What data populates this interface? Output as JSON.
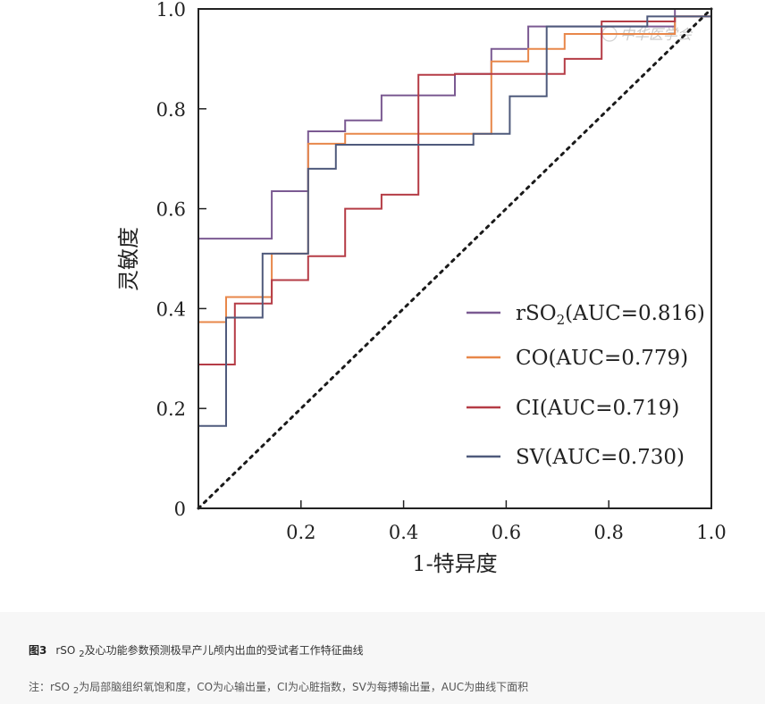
{
  "watermark": "中华医学会",
  "chart_data": {
    "type": "line",
    "subtype": "roc",
    "xlabel": "1-特异度",
    "ylabel": "灵敏度",
    "xlim": [
      0,
      1
    ],
    "ylim": [
      0,
      1
    ],
    "x_ticks": [
      0.2,
      0.4,
      0.6,
      0.8,
      1.0
    ],
    "x_tick_labels": [
      "0.2",
      "0.4",
      "0.6",
      "0.8",
      "1.0"
    ],
    "y_ticks": [
      0,
      0.2,
      0.4,
      0.6,
      0.8,
      1.0
    ],
    "y_tick_labels": [
      "0",
      "0.2",
      "0.4",
      "0.6",
      "0.8",
      "1.0"
    ],
    "reference_line": {
      "style": "dotted",
      "color": "#1a1a1a",
      "x": [
        0,
        1
      ],
      "y": [
        0,
        1
      ]
    },
    "series": [
      {
        "name": "rSO2",
        "label_prefix": "rSO",
        "label_sub": "2",
        "label_suffix": "(AUC=0.816)",
        "auc": 0.816,
        "color": "#7b5a92",
        "x": [
          0,
          0.143,
          0.143,
          0.214,
          0.214,
          0.286,
          0.286,
          0.357,
          0.357,
          0.5,
          0.5,
          0.571,
          0.571,
          0.643,
          0.643,
          0.929,
          0.929,
          1.0
        ],
        "y": [
          0.54,
          0.54,
          0.635,
          0.635,
          0.755,
          0.755,
          0.777,
          0.777,
          0.827,
          0.827,
          0.87,
          0.87,
          0.92,
          0.92,
          0.965,
          0.965,
          1.0,
          1.0
        ]
      },
      {
        "name": "CO",
        "label_prefix": "CO",
        "label_sub": "",
        "label_suffix": "(AUC=0.779)",
        "auc": 0.779,
        "color": "#e8874a",
        "x": [
          0,
          0.054,
          0.054,
          0.143,
          0.143,
          0.214,
          0.214,
          0.286,
          0.286,
          0.571,
          0.571,
          0.643,
          0.643,
          0.714,
          0.714,
          0.929,
          0.929,
          1.0
        ],
        "y": [
          0.373,
          0.373,
          0.423,
          0.423,
          0.51,
          0.51,
          0.73,
          0.73,
          0.75,
          0.75,
          0.895,
          0.895,
          0.92,
          0.92,
          0.95,
          0.95,
          0.985,
          0.985
        ]
      },
      {
        "name": "CI",
        "label_prefix": "CI",
        "label_sub": "",
        "label_suffix": "(AUC=0.719)",
        "auc": 0.719,
        "color": "#b53c46",
        "x": [
          0,
          0.071,
          0.071,
          0.143,
          0.143,
          0.214,
          0.214,
          0.286,
          0.286,
          0.357,
          0.357,
          0.429,
          0.429,
          0.5,
          0.5,
          0.714,
          0.714,
          0.786,
          0.786,
          0.929,
          0.929,
          1.0,
          1.0
        ],
        "y": [
          0.288,
          0.288,
          0.41,
          0.41,
          0.457,
          0.457,
          0.505,
          0.505,
          0.6,
          0.6,
          0.628,
          0.628,
          0.868,
          0.868,
          0.87,
          0.87,
          0.9,
          0.9,
          0.975,
          0.975,
          0.985,
          0.985,
          1.0
        ]
      },
      {
        "name": "SV",
        "label_prefix": "SV",
        "label_sub": "",
        "label_suffix": "(AUC=0.730)",
        "auc": 0.73,
        "color": "#4f5a7c",
        "x": [
          0,
          0.054,
          0.054,
          0.125,
          0.125,
          0.214,
          0.214,
          0.268,
          0.268,
          0.536,
          0.536,
          0.607,
          0.607,
          0.679,
          0.679,
          0.875,
          0.875,
          1.0
        ],
        "y": [
          0.165,
          0.165,
          0.382,
          0.382,
          0.51,
          0.51,
          0.68,
          0.68,
          0.728,
          0.728,
          0.75,
          0.75,
          0.825,
          0.825,
          0.965,
          0.965,
          0.985,
          0.985
        ]
      }
    ]
  },
  "caption": {
    "fig_num": "图3",
    "title_prefix": "rSO",
    "title_sub": "2",
    "title_suffix": "及心功能参数预测极早产儿颅内出血的受试者工作特征曲线",
    "note_prefix": "注：rSO",
    "note_sub": "2",
    "note_suffix": "为局部脑组织氧饱和度，CO为心输出量，CI为心脏指数，SV为每搏输出量，AUC为曲线下面积"
  }
}
